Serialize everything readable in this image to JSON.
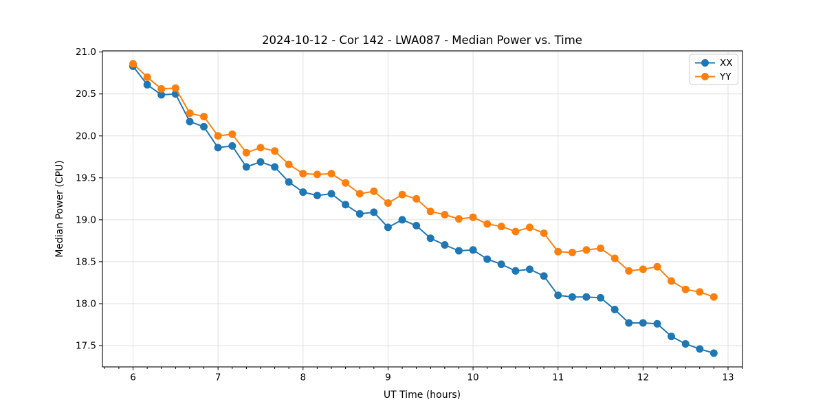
{
  "figure": {
    "background": "#ffffff",
    "text_color": "#000000"
  },
  "chart_data": {
    "type": "line",
    "title": "2024-10-12 - Cor 142 - LWA087 - Median Power vs. Time",
    "xlabel": "UT Time (hours)",
    "ylabel": "Median Power (CPU)",
    "x": [
      6.0,
      6.167,
      6.333,
      6.5,
      6.667,
      6.833,
      7.0,
      7.167,
      7.333,
      7.5,
      7.667,
      7.833,
      8.0,
      8.167,
      8.333,
      8.5,
      8.667,
      8.833,
      9.0,
      9.167,
      9.333,
      9.5,
      9.667,
      9.833,
      10.0,
      10.167,
      10.333,
      10.5,
      10.667,
      10.833,
      11.0,
      11.167,
      11.333,
      11.5,
      11.667,
      11.833,
      12.0,
      12.167,
      12.333,
      12.5,
      12.667,
      12.833
    ],
    "series": [
      {
        "name": "XX",
        "color": "#1f77b4",
        "values": [
          20.83,
          20.61,
          20.49,
          20.5,
          20.17,
          20.11,
          19.86,
          19.88,
          19.63,
          19.69,
          19.63,
          19.45,
          19.33,
          19.29,
          19.31,
          19.18,
          19.07,
          19.09,
          18.91,
          19.0,
          18.93,
          18.78,
          18.7,
          18.63,
          18.64,
          18.53,
          18.47,
          18.39,
          18.41,
          18.33,
          18.1,
          18.08,
          18.08,
          18.07,
          17.93,
          17.77,
          17.77,
          17.76,
          17.61,
          17.52,
          17.46,
          17.41
        ]
      },
      {
        "name": "YY",
        "color": "#ff7f0e",
        "values": [
          20.86,
          20.7,
          20.56,
          20.57,
          20.27,
          20.23,
          20.0,
          20.02,
          19.8,
          19.86,
          19.82,
          19.66,
          19.55,
          19.54,
          19.55,
          19.44,
          19.31,
          19.34,
          19.2,
          19.3,
          19.25,
          19.1,
          19.06,
          19.01,
          19.03,
          18.95,
          18.92,
          18.86,
          18.91,
          18.84,
          18.62,
          18.61,
          18.64,
          18.66,
          18.54,
          18.39,
          18.41,
          18.44,
          18.27,
          18.17,
          18.14,
          18.08
        ]
      }
    ],
    "xlim": [
      5.64,
      13.17
    ],
    "ylim": [
      17.246,
      21.014
    ],
    "xticks": [
      6,
      7,
      8,
      9,
      10,
      11,
      12,
      13
    ],
    "yticks": [
      17.5,
      18.0,
      18.5,
      19.0,
      19.5,
      20.0,
      20.5,
      21.0
    ],
    "x_minor_step": 0.166667,
    "grid": true,
    "grid_color": "#dfdfdf",
    "marker": "circle",
    "legend": {
      "position": "upper right",
      "entries": [
        "XX",
        "YY"
      ]
    }
  }
}
